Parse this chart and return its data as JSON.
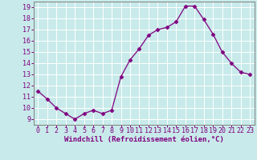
{
  "x": [
    0,
    1,
    2,
    3,
    4,
    5,
    6,
    7,
    8,
    9,
    10,
    11,
    12,
    13,
    14,
    15,
    16,
    17,
    18,
    19,
    20,
    21,
    22,
    23
  ],
  "y": [
    11.5,
    10.8,
    10.0,
    9.5,
    9.0,
    9.5,
    9.8,
    9.5,
    9.8,
    12.8,
    14.3,
    15.3,
    16.5,
    17.0,
    17.2,
    17.7,
    19.1,
    19.1,
    17.9,
    16.6,
    15.0,
    14.0,
    13.2,
    13.0
  ],
  "line_color": "#800080",
  "marker": "D",
  "marker_size": 2.5,
  "bg_color": "#c8eaea",
  "grid_color": "#ffffff",
  "xlabel": "Windchill (Refroidissement éolien,°C)",
  "xlabel_color": "#800080",
  "tick_color": "#800080",
  "spine_color": "#808080",
  "ylim": [
    8.5,
    19.5
  ],
  "xlim": [
    -0.5,
    23.5
  ],
  "yticks": [
    9,
    10,
    11,
    12,
    13,
    14,
    15,
    16,
    17,
    18,
    19
  ],
  "xticks": [
    0,
    1,
    2,
    3,
    4,
    5,
    6,
    7,
    8,
    9,
    10,
    11,
    12,
    13,
    14,
    15,
    16,
    17,
    18,
    19,
    20,
    21,
    22,
    23
  ],
  "tick_fontsize": 6,
  "xlabel_fontsize": 6.5
}
